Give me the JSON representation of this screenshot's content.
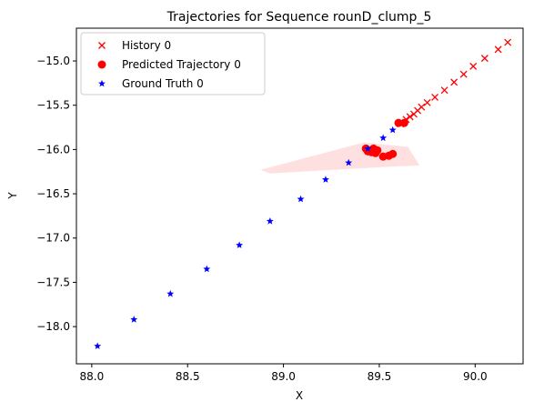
{
  "chart_data": {
    "type": "scatter",
    "title": "Trajectories for Sequence rounD_clump_5",
    "xlabel": "X",
    "ylabel": "Y",
    "xlim": [
      87.92,
      90.25
    ],
    "ylim": [
      -18.42,
      -14.63
    ],
    "x_ticks": [
      88.0,
      88.5,
      89.0,
      89.5,
      90.0
    ],
    "x_tick_labels": [
      "88.0",
      "88.5",
      "89.0",
      "89.5",
      "90.0"
    ],
    "y_ticks": [
      -15.0,
      -15.5,
      -16.0,
      -16.5,
      -17.0,
      -17.5,
      -18.0
    ],
    "y_tick_labels": [
      "−15.0",
      "−15.5",
      "−16.0",
      "−16.5",
      "−17.0",
      "−17.5",
      "−18.0"
    ],
    "grid": false,
    "legend_position": "upper-left",
    "series": [
      {
        "name": "History 0",
        "marker": "x",
        "color": "#ff0000",
        "points": [
          [
            90.17,
            -14.79
          ],
          [
            90.12,
            -14.87
          ],
          [
            90.05,
            -14.97
          ],
          [
            89.99,
            -15.06
          ],
          [
            89.94,
            -15.15
          ],
          [
            89.89,
            -15.24
          ],
          [
            89.84,
            -15.33
          ],
          [
            89.79,
            -15.41
          ],
          [
            89.75,
            -15.47
          ],
          [
            89.72,
            -15.52
          ],
          [
            89.7,
            -15.56
          ],
          [
            89.68,
            -15.6
          ],
          [
            89.66,
            -15.63
          ],
          [
            89.64,
            -15.66
          ],
          [
            89.62,
            -15.7
          ],
          [
            89.61,
            -15.71
          ]
        ]
      },
      {
        "name": "Predicted Trajectory 0",
        "marker": "o",
        "color": "#ff0000",
        "points": [
          [
            89.43,
            -15.99
          ],
          [
            89.45,
            -16.01
          ],
          [
            89.47,
            -15.99
          ],
          [
            89.49,
            -16.01
          ],
          [
            89.48,
            -16.04
          ],
          [
            89.52,
            -16.08
          ],
          [
            89.55,
            -16.07
          ],
          [
            89.57,
            -16.05
          ],
          [
            89.44,
            -16.02
          ],
          [
            89.46,
            -16.03
          ],
          [
            89.63,
            -15.7
          ],
          [
            89.6,
            -15.7
          ]
        ]
      },
      {
        "name": "Ground Truth 0",
        "marker": "*",
        "color": "#0000ff",
        "points": [
          [
            89.57,
            -15.78
          ],
          [
            89.52,
            -15.87
          ],
          [
            89.44,
            -15.99
          ],
          [
            89.34,
            -16.15
          ],
          [
            89.22,
            -16.34
          ],
          [
            89.09,
            -16.56
          ],
          [
            88.93,
            -16.81
          ],
          [
            88.77,
            -17.08
          ],
          [
            88.6,
            -17.35
          ],
          [
            88.41,
            -17.63
          ],
          [
            88.22,
            -17.92
          ],
          [
            88.03,
            -18.22
          ]
        ]
      }
    ],
    "uncertainty_region": {
      "color": "#ff0000",
      "opacity": 0.12,
      "polygon": [
        [
          88.88,
          -16.23
        ],
        [
          89.42,
          -15.92
        ],
        [
          89.65,
          -15.97
        ],
        [
          89.71,
          -16.18
        ],
        [
          89.5,
          -16.2
        ],
        [
          88.93,
          -16.27
        ]
      ]
    }
  }
}
